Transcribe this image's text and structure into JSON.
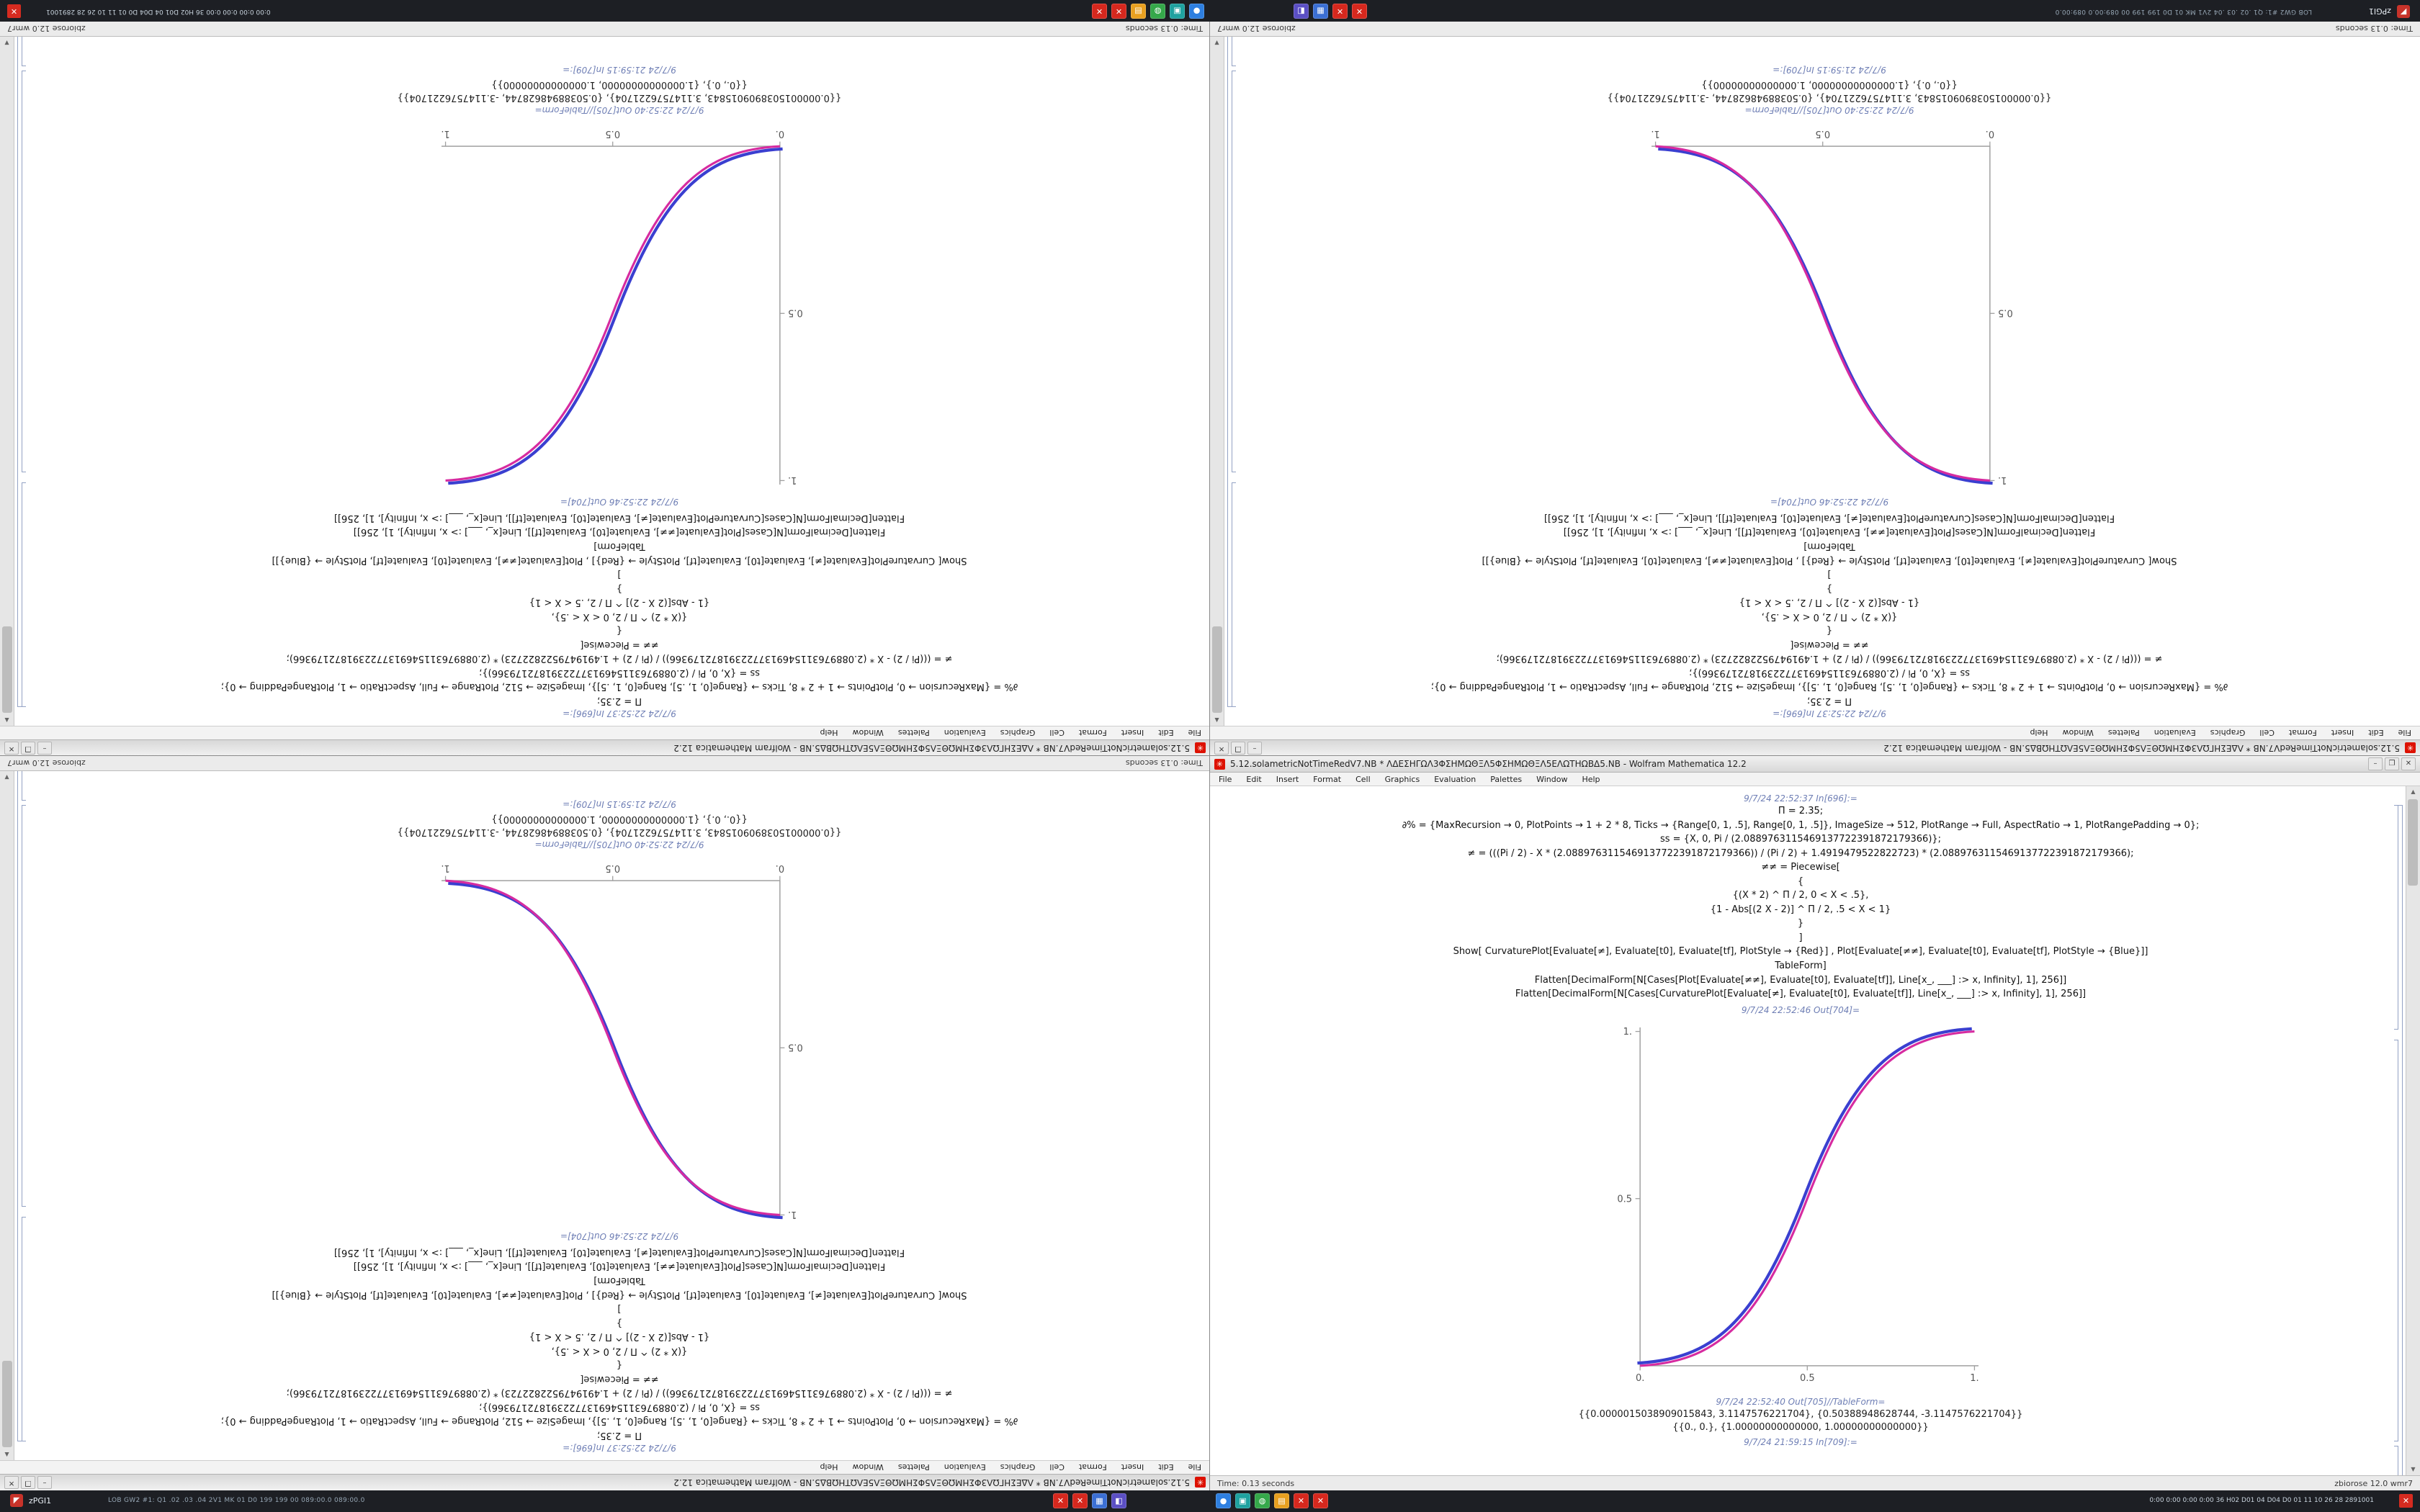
{
  "taskbar": {
    "start_label": "zPGI1",
    "start_glyph": "◤",
    "info_text": "LOB GW2 #1: Q1 .02 .03 .04 2V1 MK 01 D0 199 199 00 089:00.0 089:00.0",
    "tray_text": "0:00 0:00 0:00 0:00 36 H02 D01 04 D04 D0 01 11 10 26 28 2891001",
    "corner_glyph": "✕",
    "icon_groups": [
      [
        {
          "name": "mathematica-task-icon",
          "color": "#d6281e",
          "glyph": "✕"
        },
        {
          "name": "mathematica-task-icon",
          "color": "#d6281e",
          "glyph": "✕"
        },
        {
          "name": "files-task-icon",
          "color": "#3b6fd4",
          "glyph": "▦"
        },
        {
          "name": "settings-task-icon",
          "color": "#5b4fc4",
          "glyph": "◧"
        }
      ],
      [
        {
          "name": "browser-task-icon",
          "color": "#2e7fe0",
          "glyph": "●"
        },
        {
          "name": "terminal-task-icon",
          "color": "#1fa2a0",
          "glyph": "▣"
        },
        {
          "name": "chat-task-icon",
          "color": "#35a84a",
          "glyph": "◍"
        },
        {
          "name": "mail-task-icon",
          "color": "#e8a020",
          "glyph": "▤"
        },
        {
          "name": "app-red-task-icon",
          "color": "#d6281e",
          "glyph": "✕"
        },
        {
          "name": "app-red-task-icon",
          "color": "#d6281e",
          "glyph": "✕"
        }
      ]
    ]
  },
  "window": {
    "title": "5.12.solametricNotTimeRedV7.NB * ΛΔΕΣΗΓΩΛ3ΦΣΗΜΩΘΞΛ5ΦΣΗΜΩΘΞΛ5ΕΛΩΤΗΩΒΔ5.NB - Wolfram Mathematica 12.2",
    "icon_glyph": "✳",
    "menu": [
      "File",
      "Edit",
      "Insert",
      "Format",
      "Cell",
      "Graphics",
      "Evaluation",
      "Palettes",
      "Window",
      "Help"
    ],
    "controls": [
      "–",
      "❐",
      "✕"
    ],
    "status_left": "Time: 0.13 seconds",
    "status_right": "zbiorose 12.0 wmr7",
    "cells": [
      {
        "type": "label",
        "text": "9/7/24 22:52:37 In[696]:="
      },
      {
        "type": "code",
        "text": "Π = 2.35;"
      },
      {
        "type": "code",
        "text": "∂% = {MaxRecursion → 0, PlotPoints → 1 + 2 * 8, Ticks → {Range[0, 1, .5], Range[0, 1, .5]}, ImageSize → 512, PlotRange → Full, AspectRatio → 1, PlotRangePadding → 0};"
      },
      {
        "type": "code",
        "text": "ss = {X, 0, Pi / (2.0889763115469137722391872179366)};"
      },
      {
        "type": "code",
        "text": "≠ = (((Pi / 2) - X * (2.0889763115469137722391872179366)) / (Pi / 2) + 1.4919479522822723) * (2.0889763115469137722391872179366);"
      },
      {
        "type": "code",
        "text": "≠≠ = Piecewise["
      },
      {
        "type": "code",
        "text": "{"
      },
      {
        "type": "code",
        "text": "{(X * 2) ^ Π / 2, 0 < X < .5},"
      },
      {
        "type": "code",
        "text": "{1 - Abs[(2 X - 2)] ^ Π / 2, .5 < X < 1}"
      },
      {
        "type": "code",
        "text": "}"
      },
      {
        "type": "code",
        "text": "]"
      },
      {
        "type": "code",
        "text": "Show[ CurvaturePlot[Evaluate[≠], Evaluate[t0], Evaluate[tf], PlotStyle → {Red}] , Plot[Evaluate[≠≠], Evaluate[t0], Evaluate[tf], PlotStyle → {Blue}]]"
      },
      {
        "type": "code",
        "text": "TableForm]"
      },
      {
        "type": "code",
        "text": "Flatten[DecimalForm[N[Cases[Plot[Evaluate[≠≠], Evaluate[t0], Evaluate[tf]], Line[x_, ___] :> x, Infinity], 1], 256]]"
      },
      {
        "type": "code",
        "text": "Flatten[DecimalForm[N[Cases[CurvaturePlot[Evaluate[≠], Evaluate[t0], Evaluate[tf]], Line[x_, ___] :> x, Infinity], 1], 256]]"
      },
      {
        "type": "label",
        "text": "9/7/24 22:52:46 Out[704]="
      },
      {
        "type": "plot"
      },
      {
        "type": "label",
        "text": "9/7/24 22:52:40 Out[705]//TableForm="
      },
      {
        "type": "output",
        "text": "{{0.0000015038909015843, 3.1147576221704}, {0.50388948628744, -3.1147576221704}}"
      },
      {
        "type": "output",
        "text": "{{0., 0.}, {1.00000000000000, 1.00000000000000}}"
      },
      {
        "type": "label",
        "text": "9/7/24 21:59:15 In[709]:="
      }
    ]
  },
  "plot": {
    "x_ticks": [
      "0.",
      "0.5",
      "1."
    ],
    "y_ticks": [
      "0.5",
      "1."
    ],
    "axis_color": "#a0a0a0",
    "tick_label_color": "#555555",
    "curve_blue": "#3a3fd0",
    "curve_magenta": "#d62ba0"
  },
  "windows": [
    {
      "id": "top-left",
      "rotated": true,
      "plot": "ascending"
    },
    {
      "id": "top-right",
      "rotated": true,
      "plot": "descending"
    },
    {
      "id": "bottom-left",
      "rotated": true,
      "plot": "descending"
    },
    {
      "id": "bottom-right",
      "rotated": false,
      "plot": "ascending"
    }
  ]
}
